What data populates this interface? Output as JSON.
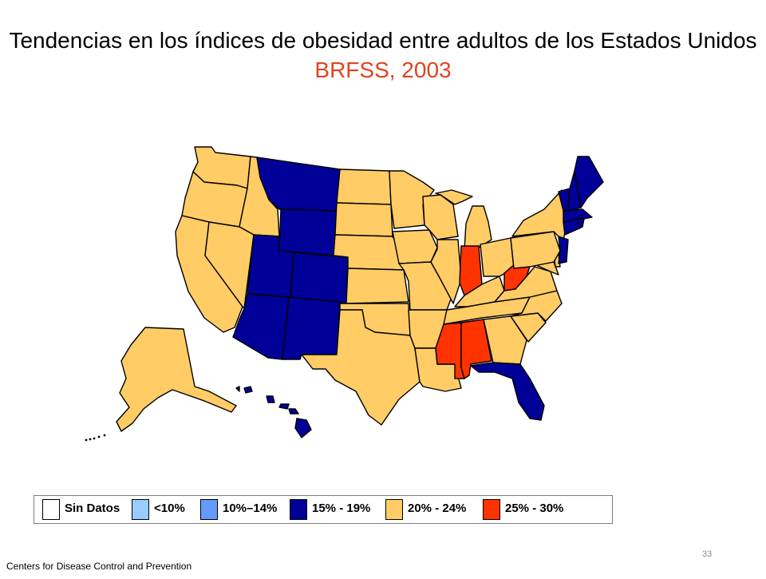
{
  "title": "Tendencias en los índices de obesidad entre adultos de los Estados Unidos",
  "subtitle": "BRFSS, 2003",
  "colors": {
    "no_data": "#ffffff",
    "lt10": "#99ccff",
    "p10_14": "#6699ff",
    "p15_19": "#000099",
    "p20_24": "#ffcc66",
    "p25_30": "#ff3300"
  },
  "legend": [
    {
      "key": "no_data",
      "label": "Sin Datos"
    },
    {
      "key": "lt10",
      "label": "<10%"
    },
    {
      "key": "p10_14",
      "label": "10%–14%"
    },
    {
      "key": "p15_19",
      "label": "15% - 19%"
    },
    {
      "key": "p20_24",
      "label": "20% - 24%"
    },
    {
      "key": "p25_30",
      "label": "25% - 30%"
    }
  ],
  "states": {
    "WA": "p20_24",
    "OR": "p20_24",
    "CA": "p20_24",
    "ID": "p20_24",
    "NV": "p20_24",
    "MT": "p15_19",
    "WY": "p15_19",
    "UT": "p15_19",
    "CO": "p15_19",
    "AZ": "p15_19",
    "NM": "p15_19",
    "ND": "p20_24",
    "SD": "p20_24",
    "NE": "p20_24",
    "KS": "p20_24",
    "OK": "p20_24",
    "TX": "p20_24",
    "MN": "p20_24",
    "IA": "p20_24",
    "MO": "p20_24",
    "AR": "p20_24",
    "LA": "p20_24",
    "WI": "p20_24",
    "IL": "p20_24",
    "MI": "p20_24",
    "OH": "p20_24",
    "KY": "p20_24",
    "TN": "p20_24",
    "IN": "p25_30",
    "MS": "p25_30",
    "AL": "p25_30",
    "WV": "p25_30",
    "GA": "p20_24",
    "FL": "p15_19",
    "SC": "p20_24",
    "NC": "p20_24",
    "VA": "p20_24",
    "MD": "p20_24",
    "DE": "p20_24",
    "PA": "p20_24",
    "NY": "p20_24",
    "NJ": "p15_19",
    "CT": "p15_19",
    "RI": "p15_19",
    "MA": "p15_19",
    "VT": "p15_19",
    "NH": "p15_19",
    "ME": "p15_19",
    "AK": "p20_24",
    "HI": "p15_19"
  },
  "footer": "Centers  for Disease Control and Prevention",
  "page_number": "33"
}
